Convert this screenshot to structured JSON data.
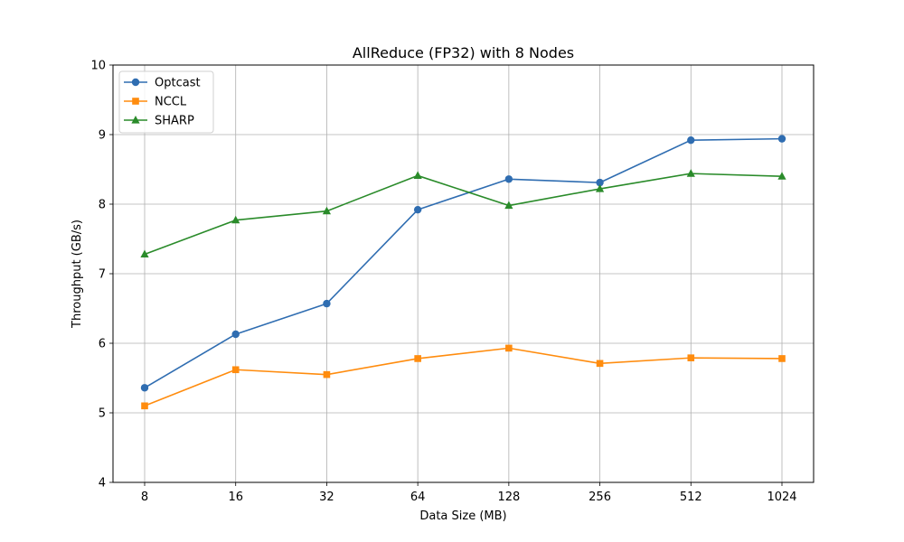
{
  "chart_data": {
    "type": "line",
    "title": "AllReduce (FP32) with 8 Nodes",
    "xlabel": "Data Size (MB)",
    "ylabel": "Throughput (GB/s)",
    "categories": [
      "8",
      "16",
      "32",
      "64",
      "128",
      "256",
      "512",
      "1024"
    ],
    "yticks": [
      "4",
      "5",
      "6",
      "7",
      "8",
      "9",
      "10"
    ],
    "ylim": [
      4,
      10
    ],
    "grid": true,
    "legend_position": "upper-left",
    "series": [
      {
        "name": "Optcast",
        "color": "#2f6db1",
        "marker": "circle",
        "values": [
          5.36,
          6.13,
          6.57,
          7.92,
          8.36,
          8.31,
          8.92,
          8.94
        ]
      },
      {
        "name": "NCCL",
        "color": "#ff8c0e",
        "marker": "square",
        "values": [
          5.1,
          5.62,
          5.55,
          5.78,
          5.93,
          5.71,
          5.79,
          5.78
        ]
      },
      {
        "name": "SHARP",
        "color": "#2a8b2a",
        "marker": "triangle",
        "values": [
          7.28,
          7.77,
          7.9,
          8.41,
          7.98,
          8.22,
          8.44,
          8.4
        ]
      }
    ]
  }
}
